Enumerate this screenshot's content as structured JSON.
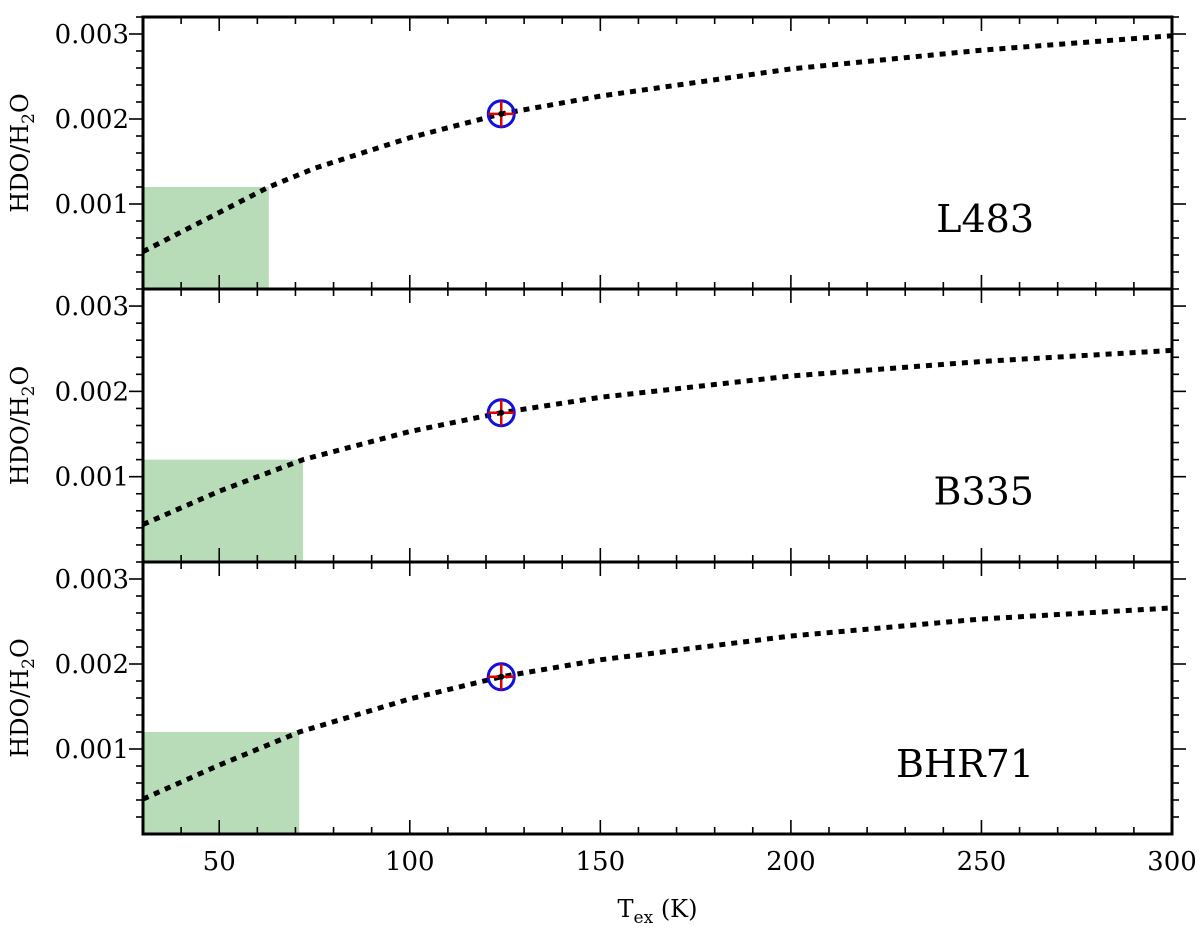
{
  "chart_data": [
    {
      "type": "line",
      "panel_label": "L483",
      "ylabel_parts": [
        "HDO/H",
        "2",
        "O"
      ],
      "xlabel_parts": [
        "T",
        "ex",
        " (K)"
      ],
      "xlim": [
        30,
        300
      ],
      "ylim": [
        0,
        0.0032
      ],
      "xticks": [
        50,
        100,
        150,
        200,
        250,
        300
      ],
      "yticks": [
        0.001,
        0.002,
        0.003
      ],
      "ytick_labels": [
        "0.001",
        "0.002",
        "0.003"
      ],
      "shaded_region": {
        "x": [
          30,
          63
        ],
        "y": [
          0,
          0.0012
        ],
        "color": "#b8dcb8"
      },
      "curve": {
        "x": [
          30,
          50,
          63,
          75,
          100,
          124,
          150,
          200,
          250,
          300
        ],
        "y": [
          0.00044,
          0.0009,
          0.0012,
          0.00142,
          0.00178,
          0.00206,
          0.00227,
          0.00259,
          0.00281,
          0.00298
        ]
      },
      "marker": {
        "x": 124,
        "y": 0.00206,
        "circle_color": "#1010e0",
        "cross_color": "#e00000"
      }
    },
    {
      "type": "line",
      "panel_label": "B335",
      "ylabel_parts": [
        "HDO/H",
        "2",
        "O"
      ],
      "xlim": [
        30,
        300
      ],
      "ylim": [
        0,
        0.0032
      ],
      "xticks": [
        50,
        100,
        150,
        200,
        250,
        300
      ],
      "yticks": [
        0.001,
        0.002,
        0.003
      ],
      "ytick_labels": [
        "0.001",
        "0.002",
        "0.003"
      ],
      "shaded_region": {
        "x": [
          30,
          72
        ],
        "y": [
          0,
          0.0012
        ],
        "color": "#b8dcb8"
      },
      "curve": {
        "x": [
          30,
          50,
          72,
          100,
          124,
          150,
          200,
          250,
          300
        ],
        "y": [
          0.00044,
          0.00083,
          0.0012,
          0.00153,
          0.00175,
          0.00193,
          0.00218,
          0.00235,
          0.00248
        ]
      },
      "marker": {
        "x": 124,
        "y": 0.00175,
        "circle_color": "#1010e0",
        "cross_color": "#e00000"
      }
    },
    {
      "type": "line",
      "panel_label": "BHR71",
      "ylabel_parts": [
        "HDO/H",
        "2",
        "O"
      ],
      "xlim": [
        30,
        300
      ],
      "ylim": [
        0,
        0.0032
      ],
      "xticks": [
        50,
        100,
        150,
        200,
        250,
        300
      ],
      "yticks": [
        0.001,
        0.002,
        0.003
      ],
      "ytick_labels": [
        "0.001",
        "0.002",
        "0.003"
      ],
      "shaded_region": {
        "x": [
          30,
          71
        ],
        "y": [
          0,
          0.0012
        ],
        "color": "#b8dcb8"
      },
      "curve": {
        "x": [
          30,
          50,
          71,
          100,
          124,
          150,
          200,
          250,
          300
        ],
        "y": [
          0.00041,
          0.00081,
          0.0012,
          0.00159,
          0.00185,
          0.00205,
          0.00233,
          0.00253,
          0.00266
        ]
      },
      "marker": {
        "x": 124,
        "y": 0.00185,
        "circle_color": "#1010e0",
        "cross_color": "#e00000"
      }
    }
  ]
}
